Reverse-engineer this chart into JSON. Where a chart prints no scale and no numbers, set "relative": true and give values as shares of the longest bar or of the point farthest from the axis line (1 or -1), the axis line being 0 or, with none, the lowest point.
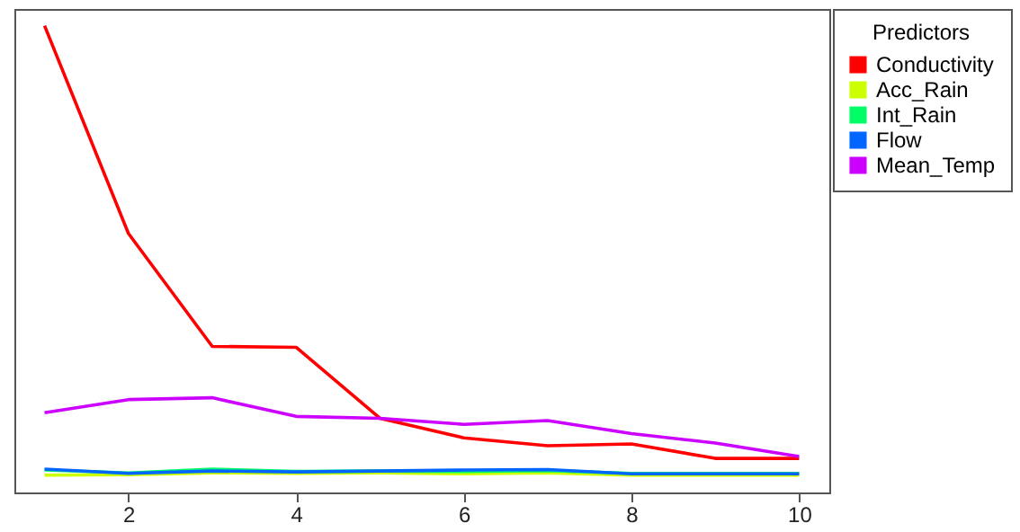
{
  "chart_data": {
    "type": "line",
    "relative": true,
    "x": [
      1,
      2,
      3,
      4,
      5,
      6,
      7,
      8,
      9,
      10
    ],
    "xlim": [
      0.64,
      10.36
    ],
    "xticks": [
      2,
      4,
      6,
      8,
      10
    ],
    "legend_title": "Predictors",
    "legend": "right",
    "line_style": "solid",
    "series": [
      {
        "name": "Conductivity",
        "color": "#ff0000",
        "values": [
          1,
          0.555,
          0.313,
          0.311,
          0.159,
          0.117,
          0.1,
          0.104,
          0.073,
          0.073
        ]
      },
      {
        "name": "Acc_Rain",
        "color": "#ccff00",
        "values": [
          0.037,
          0.038,
          0.042,
          0.041,
          0.042,
          0.04,
          0.042,
          0.037,
          0.037,
          0.037
        ]
      },
      {
        "name": "Int_Rain",
        "color": "#00ff66",
        "values": [
          0.048,
          0.042,
          0.05,
          0.045,
          0.046,
          0.045,
          0.047,
          0.041,
          0.041,
          0.041
        ]
      },
      {
        "name": "Flow",
        "color": "#0066ff",
        "values": [
          0.05,
          0.041,
          0.046,
          0.044,
          0.046,
          0.048,
          0.049,
          0.04,
          0.04,
          0.04
        ]
      },
      {
        "name": "Mean_Temp",
        "color": "#cc00ff",
        "values": [
          0.171,
          0.199,
          0.203,
          0.163,
          0.159,
          0.146,
          0.154,
          0.126,
          0.106,
          0.077
        ]
      }
    ]
  }
}
